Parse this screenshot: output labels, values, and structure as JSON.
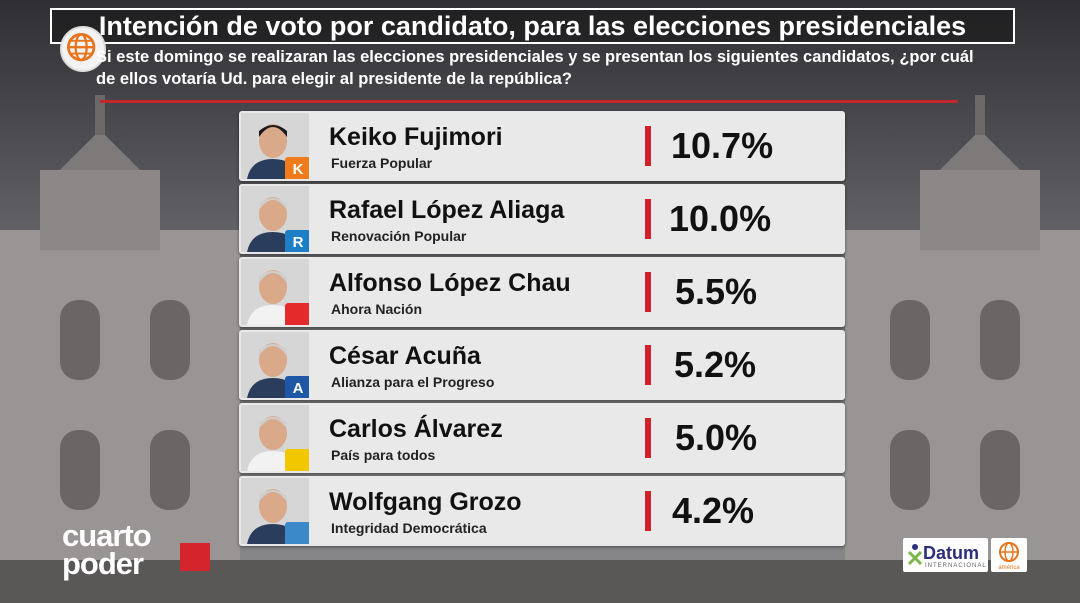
{
  "header": {
    "title": "Intención de voto por candidato, para las elecciones presidenciales",
    "question": "Si este domingo se realizaran las elecciones presidenciales y se presentan los siguientes candidatos, ¿por cuál de ellos votaría Ud. para elegir al presidente de la república?"
  },
  "candidates": [
    {
      "name": "Keiko Fujimori",
      "party": "Fuerza Popular",
      "percent": "10.7%",
      "value": 10.7,
      "badge": "K",
      "badge_color": "#f07b1a",
      "icon": "fuerza-popular-logo"
    },
    {
      "name": "Rafael López Aliaga",
      "party": "Renovación Popular",
      "percent": "10.0%",
      "value": 10.0,
      "badge": "R",
      "badge_color": "#1e7fc7",
      "icon": "renovacion-popular-logo"
    },
    {
      "name": "Alfonso López Chau",
      "party": "Ahora Nación",
      "percent": "5.5%",
      "value": 5.5,
      "badge": "",
      "badge_color": "#e32b2b",
      "icon": "ahora-nacion-logo"
    },
    {
      "name": "César Acuña",
      "party": "Alianza para el Progreso",
      "percent": "5.2%",
      "value": 5.2,
      "badge": "A",
      "badge_color": "#1d57a6",
      "icon": "app-logo"
    },
    {
      "name": "Carlos Álvarez",
      "party": "País para todos",
      "percent": "5.0%",
      "value": 5.0,
      "badge": "",
      "badge_color": "#f2c700",
      "icon": "pais-para-todos-logo"
    },
    {
      "name": "Wolfgang Grozo",
      "party": "Integridad Democrática",
      "percent": "4.2%",
      "value": 4.2,
      "badge": "",
      "badge_color": "#3c89c9",
      "icon": "integridad-democratica-logo"
    }
  ],
  "branding": {
    "left_logo_line1": "cuarto",
    "left_logo_line2": "poder",
    "datum": "Datum",
    "datum_sub": "INTERNACIONAL",
    "america": "américa"
  },
  "colors": {
    "accent_red": "#c0272d",
    "card_bg": "#e9e9e9"
  }
}
